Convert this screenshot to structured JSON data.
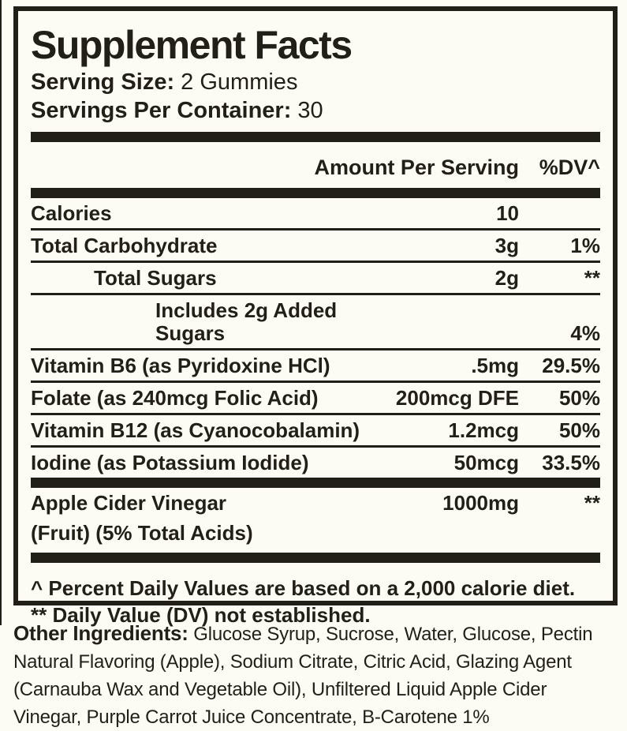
{
  "colors": {
    "ink": "#221f19",
    "paper": "#fdfcf4"
  },
  "panel": {
    "title": "Supplement Facts",
    "serving_size_label": "Serving Size:",
    "serving_size_value": " 2 Gummies",
    "servings_label": "Servings Per Container:",
    "servings_value": " 30",
    "columns": {
      "amount": "Amount Per Serving",
      "dv": "%DV^"
    },
    "rows": [
      {
        "name": "Calories",
        "amount": "10",
        "dv": "",
        "indent": 0,
        "sep": "thin"
      },
      {
        "name": "Total Carbohydrate",
        "amount": "3g",
        "dv": "1%",
        "indent": 0,
        "sep": "thin"
      },
      {
        "name": "Total Sugars",
        "amount": "2g",
        "dv": "**",
        "indent": 1,
        "sep": "thin"
      },
      {
        "name": "Includes 2g Added Sugars",
        "amount": "",
        "dv": "4%",
        "indent": 2,
        "sep": "thin"
      },
      {
        "name": "Vitamin B6 (as Pyridoxine HCl)",
        "amount": ".5mg",
        "dv": "29.5%",
        "indent": 0,
        "sep": "thin"
      },
      {
        "name": "Folate (as 240mcg Folic Acid)",
        "amount": "200mcg DFE",
        "dv": "50%",
        "indent": 0,
        "sep": "thin"
      },
      {
        "name": "Vitamin B12 (as Cyanocobalamin)",
        "amount": "1.2mcg",
        "dv": "50%",
        "indent": 0,
        "sep": "thin"
      },
      {
        "name": "Iodine (as Potassium Iodide)",
        "amount": "50mcg",
        "dv": "33.5%",
        "indent": 0,
        "sep": "thick"
      },
      {
        "name": "Apple Cider Vinegar",
        "name2": "(Fruit) (5% Total Acids)",
        "amount": "1000mg",
        "dv": "**",
        "indent": 0,
        "sep": "thick"
      }
    ],
    "footnotes": [
      "^ Percent Daily Values are based on a 2,000 calorie diet.",
      "** Daily Value (DV) not established."
    ]
  },
  "other_ingredients": {
    "label": "Other Ingredients:",
    "line1_rest": "  Glucose Syrup, Sucrose, Water, Glucose, Pectin",
    "lines": [
      "Natural Flavoring (Apple), Sodium Citrate, Citric Acid, Glazing Agent",
      "(Carnauba Wax and Vegetable Oil), Unfiltered Liquid Apple Cider",
      "Vinegar, Purple Carrot Juice Concentrate, B-Carotene 1%"
    ]
  }
}
